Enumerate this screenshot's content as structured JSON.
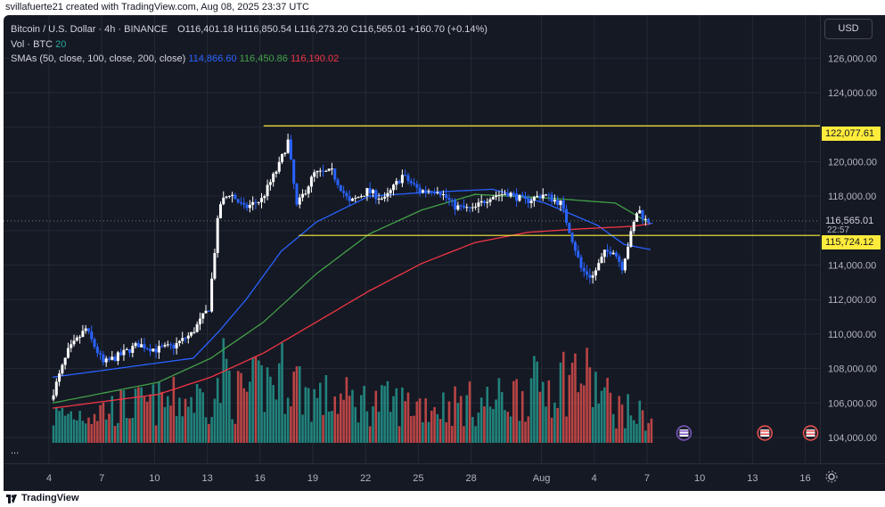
{
  "header": {
    "attribution": "svillafuerte21 created with TradingView.com, Aug 08, 2025 23:37 UTC"
  },
  "legend": {
    "symbol": "Bitcoin / U.S. Dollar · 4h · BINANCE",
    "open": "O116,401.18",
    "high": "H116,850.54",
    "low": "L116,273.20",
    "close": "C116,565.01",
    "change": "+160.70 (+0.14%)",
    "vol_label": "Vol · BTC",
    "vol_value": "20",
    "sma_label": "SMAs (50, close, 100, close, 200, close)",
    "sma50": "114,866.60",
    "sma100": "116,450.86",
    "sma200": "116,190.02"
  },
  "scale": {
    "currency": "USD",
    "ticks": [
      "126,000.00",
      "124,000.00",
      "120,000.00",
      "118,000.00",
      "114,000.00",
      "112,000.00",
      "110,000.00",
      "108,000.00",
      "106,000.00",
      "104,000.00"
    ],
    "resistance_label": "122,077.61",
    "current_label": "116,565.01",
    "countdown": "22:57",
    "support_label": "115,724.12"
  },
  "time_axis": {
    "labels": [
      "4",
      "7",
      "10",
      "13",
      "16",
      "19",
      "22",
      "25",
      "28",
      "Aug",
      "4",
      "7",
      "10",
      "13",
      "16"
    ]
  },
  "footer": {
    "brand": "TradingView",
    "more": "..."
  },
  "colors": {
    "background": "#151924",
    "up": "#ffffff",
    "down": "#2962ff",
    "vol_up": "#26a69a",
    "vol_down": "#ef5350",
    "sma50": "#2962ff",
    "sma100": "#43a047",
    "sma200": "#f23645",
    "level": "#ffeb3b"
  },
  "chart_data": {
    "type": "candlestick",
    "title": "Bitcoin / U.S. Dollar · 4h · BINANCE",
    "y_range": [
      102500,
      128500
    ],
    "horizontal_levels": [
      122077.61,
      115724.12
    ],
    "last_price": 116565.01,
    "x_range_days": [
      "Jul 2",
      "Jul 17"
    ],
    "series": [
      {
        "name": "SMA 50",
        "anchors": [
          [
            0,
            107500
          ],
          [
            8,
            108600
          ],
          [
            9.5,
            110200
          ],
          [
            11,
            112000
          ],
          [
            13,
            114800
          ],
          [
            15,
            116500
          ],
          [
            18,
            118000
          ],
          [
            21,
            118200
          ],
          [
            25,
            118400
          ],
          [
            28,
            117600
          ],
          [
            31,
            116300
          ],
          [
            32.5,
            115200
          ],
          [
            34,
            114900
          ]
        ]
      },
      {
        "name": "SMA 100",
        "anchors": [
          [
            0,
            106000
          ],
          [
            6,
            107200
          ],
          [
            9,
            108600
          ],
          [
            12,
            110700
          ],
          [
            15,
            113500
          ],
          [
            18,
            115800
          ],
          [
            21,
            117200
          ],
          [
            24,
            118100
          ],
          [
            28,
            117900
          ],
          [
            32,
            117600
          ],
          [
            34,
            116400
          ]
        ]
      },
      {
        "name": "SMA 200",
        "anchors": [
          [
            0,
            105700
          ],
          [
            6,
            106500
          ],
          [
            9,
            107500
          ],
          [
            12,
            108900
          ],
          [
            15,
            110700
          ],
          [
            18,
            112500
          ],
          [
            21,
            114100
          ],
          [
            24,
            115300
          ],
          [
            27,
            115900
          ],
          [
            30,
            116100
          ],
          [
            33,
            116250
          ],
          [
            34,
            116400
          ]
        ]
      }
    ],
    "price_anchors": [
      [
        0,
        106200
      ],
      [
        1,
        109000
      ],
      [
        2,
        110300
      ],
      [
        3,
        108300
      ],
      [
        4,
        108800
      ],
      [
        5,
        109400
      ],
      [
        6,
        109100
      ],
      [
        7,
        109300
      ],
      [
        8,
        110000
      ],
      [
        9,
        111500
      ],
      [
        9.6,
        117500
      ],
      [
        10.2,
        118200
      ],
      [
        11,
        117300
      ],
      [
        12,
        117800
      ],
      [
        13,
        119800
      ],
      [
        13.5,
        121200
      ],
      [
        14,
        117400
      ],
      [
        15,
        119300
      ],
      [
        16,
        119400
      ],
      [
        17,
        117600
      ],
      [
        18,
        118300
      ],
      [
        19,
        117800
      ],
      [
        20,
        119200
      ],
      [
        21,
        118300
      ],
      [
        22,
        118400
      ],
      [
        23,
        117400
      ],
      [
        24,
        117200
      ],
      [
        25,
        118000
      ],
      [
        26,
        118200
      ],
      [
        27,
        117700
      ],
      [
        28,
        118100
      ],
      [
        29,
        117600
      ],
      [
        29.7,
        115400
      ],
      [
        30.2,
        113700
      ],
      [
        30.8,
        113300
      ],
      [
        31.5,
        114700
      ],
      [
        32,
        114900
      ],
      [
        32.5,
        113900
      ],
      [
        33,
        115800
      ],
      [
        33.4,
        117300
      ],
      [
        33.8,
        116600
      ],
      [
        34,
        116565
      ]
    ],
    "volume_anchors": [
      [
        0,
        0.2
      ],
      [
        9.3,
        0.35
      ],
      [
        9.8,
        0.58
      ],
      [
        10.2,
        0.34
      ],
      [
        13.4,
        0.52
      ],
      [
        14.6,
        0.34
      ],
      [
        18,
        0.3
      ],
      [
        22,
        0.28
      ],
      [
        25,
        0.3
      ],
      [
        29.8,
        0.52
      ],
      [
        30.6,
        0.44
      ],
      [
        32,
        0.26
      ],
      [
        34,
        0.18
      ]
    ]
  }
}
